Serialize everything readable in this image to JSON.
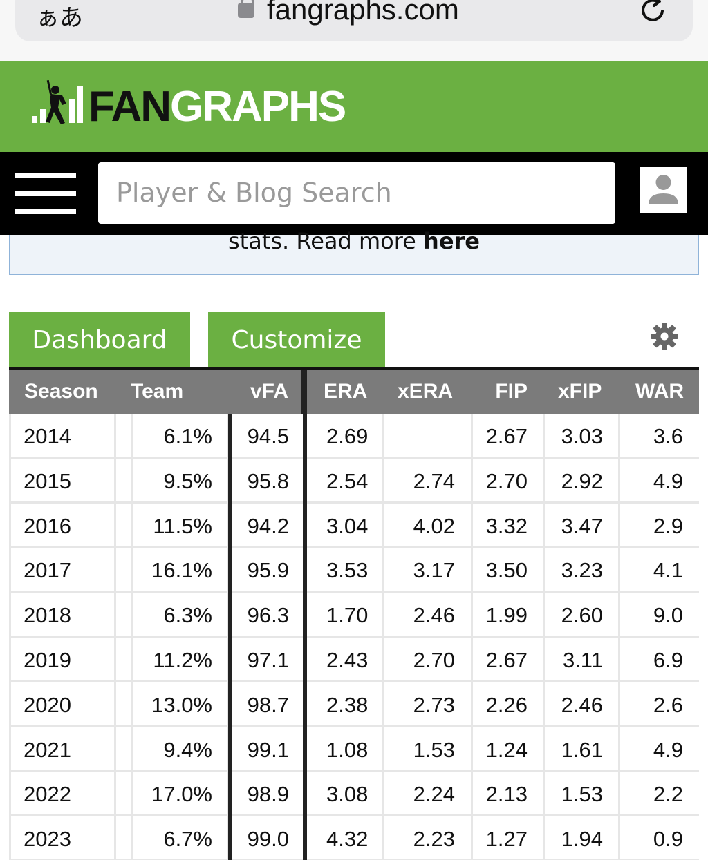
{
  "browser": {
    "aa_label": "ぁあ",
    "url": "fangraphs.com"
  },
  "brand": {
    "logo_fan": "FAN",
    "logo_graphs": "GRAPHS"
  },
  "nav": {
    "search_placeholder": "Player & Blog Search"
  },
  "notice": {
    "text": "stats. Read more ",
    "link": "here"
  },
  "tabs": [
    {
      "label": "Dashboard"
    },
    {
      "label": "Customize"
    }
  ],
  "colors": {
    "brand_green": "#6bb042",
    "header_gray": "#7b7b7b",
    "nav_black": "#000000"
  },
  "table": {
    "headers": [
      "Season",
      "Team",
      "vFA",
      "ERA",
      "xERA",
      "FIP",
      "xFIP",
      "WAR"
    ],
    "rows": [
      [
        "2014",
        "6.1%",
        "94.5",
        "2.69",
        "",
        "2.67",
        "3.03",
        "3.6"
      ],
      [
        "2015",
        "9.5%",
        "95.8",
        "2.54",
        "2.74",
        "2.70",
        "2.92",
        "4.9"
      ],
      [
        "2016",
        "11.5%",
        "94.2",
        "3.04",
        "4.02",
        "3.32",
        "3.47",
        "2.9"
      ],
      [
        "2017",
        "16.1%",
        "95.9",
        "3.53",
        "3.17",
        "3.50",
        "3.23",
        "4.1"
      ],
      [
        "2018",
        "6.3%",
        "96.3",
        "1.70",
        "2.46",
        "1.99",
        "2.60",
        "9.0"
      ],
      [
        "2019",
        "11.2%",
        "97.1",
        "2.43",
        "2.70",
        "2.67",
        "3.11",
        "6.9"
      ],
      [
        "2020",
        "13.0%",
        "98.7",
        "2.38",
        "2.73",
        "2.26",
        "2.46",
        "2.6"
      ],
      [
        "2021",
        "9.4%",
        "99.1",
        "1.08",
        "1.53",
        "1.24",
        "1.61",
        "4.9"
      ],
      [
        "2022",
        "17.0%",
        "98.9",
        "3.08",
        "2.24",
        "2.13",
        "1.53",
        "2.2"
      ],
      [
        "2023",
        "6.7%",
        "99.0",
        "4.32",
        "2.23",
        "1.27",
        "1.94",
        "0.9"
      ]
    ]
  }
}
